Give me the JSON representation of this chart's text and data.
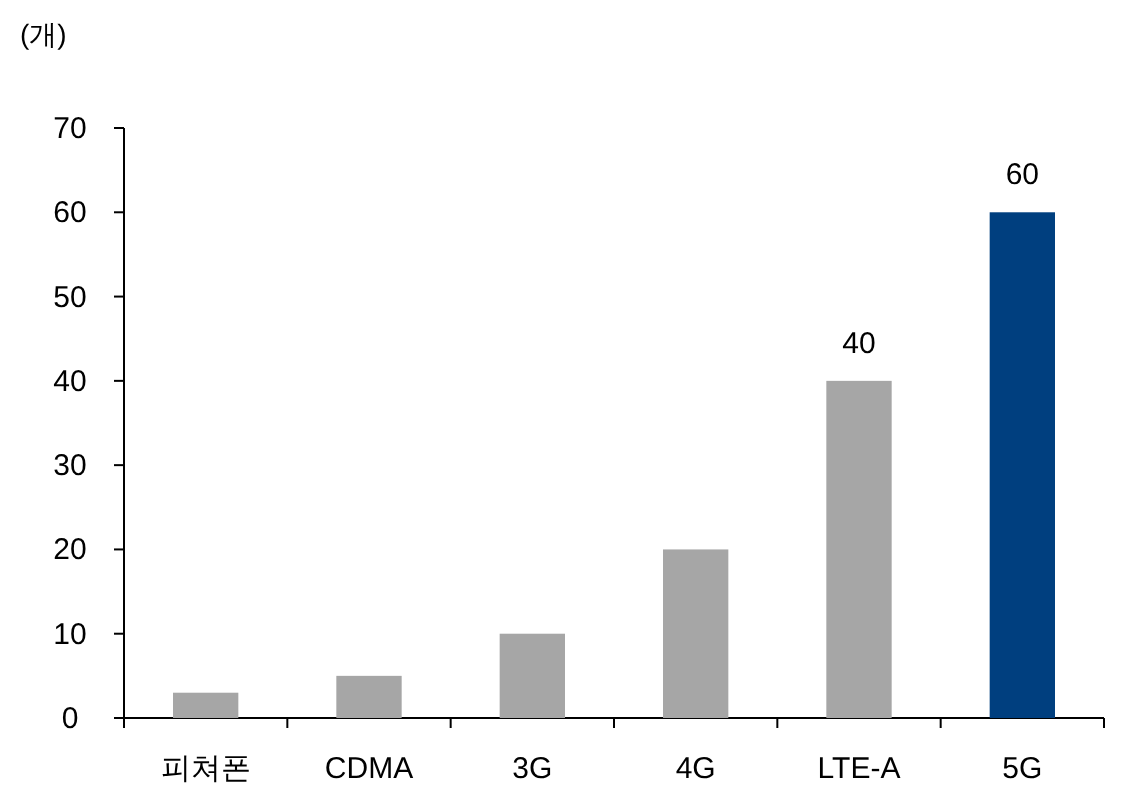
{
  "chart_data": {
    "type": "bar",
    "ylabel": "(개)",
    "categories": [
      "피쳐폰",
      "CDMA",
      "3G",
      "4G",
      "LTE-A",
      "5G"
    ],
    "values": [
      3,
      5,
      10,
      20,
      40,
      60
    ],
    "colors": [
      "#a6a6a6",
      "#a6a6a6",
      "#a6a6a6",
      "#a6a6a6",
      "#a6a6a6",
      "#003f7f"
    ],
    "value_labels": [
      null,
      null,
      null,
      null,
      "40",
      "60"
    ],
    "ylim": [
      0,
      70
    ],
    "yticks": [
      0,
      10,
      20,
      30,
      40,
      50,
      60,
      70
    ]
  }
}
